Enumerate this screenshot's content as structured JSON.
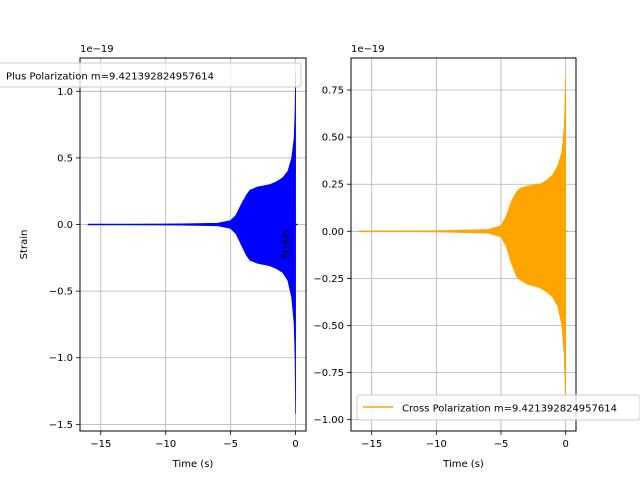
{
  "chart_data": [
    {
      "type": "line",
      "title": "",
      "xlabel": "Time (s)",
      "ylabel": "Strain",
      "offset_label": "1e−19",
      "xlim": [
        -16.6,
        0.8
      ],
      "ylim": [
        -1.55,
        1.25
      ],
      "xticks": [
        -15,
        -10,
        -5,
        0
      ],
      "xtick_labels": [
        "−15",
        "−10",
        "−5",
        "0"
      ],
      "yticks": [
        1.0,
        0.5,
        0.0,
        -0.5,
        -1.0,
        -1.5
      ],
      "ytick_labels": [
        "1.0",
        "0.5",
        "0.0",
        "−0.5",
        "−1.0",
        "−1.5"
      ],
      "grid": true,
      "legend_position": "top-center",
      "series": [
        {
          "name": "Plus Polarization m=9.421392824957614",
          "color": "#0000ff",
          "x": [
            -16,
            -10,
            -6,
            -5,
            -4.6,
            -4.2,
            -3.8,
            -3.5,
            -3.2,
            -3.0,
            -2.5,
            -2,
            -1.5,
            -1.0,
            -0.6,
            -0.3,
            -0.12,
            -0.05,
            0
          ],
          "y_upper": [
            0.0,
            0.003,
            0.01,
            0.03,
            0.07,
            0.15,
            0.22,
            0.26,
            0.27,
            0.28,
            0.29,
            0.3,
            0.32,
            0.35,
            0.4,
            0.5,
            0.65,
            0.85,
            1.15
          ],
          "y_lower": [
            0.0,
            -0.003,
            -0.01,
            -0.03,
            -0.07,
            -0.15,
            -0.23,
            -0.27,
            -0.28,
            -0.29,
            -0.3,
            -0.31,
            -0.33,
            -0.36,
            -0.42,
            -0.55,
            -0.75,
            -1.0,
            -1.42
          ]
        }
      ]
    },
    {
      "type": "line",
      "title": "",
      "xlabel": "Time (s)",
      "ylabel": "Strain",
      "offset_label": "1e−19",
      "xlim": [
        -16.6,
        0.8
      ],
      "ylim": [
        -1.06,
        0.92
      ],
      "xticks": [
        -15,
        -10,
        -5,
        0
      ],
      "xtick_labels": [
        "−15",
        "−10",
        "−5",
        "0"
      ],
      "yticks": [
        0.75,
        0.5,
        0.25,
        0.0,
        -0.25,
        -0.5,
        -0.75,
        -1.0
      ],
      "ytick_labels": [
        "0.75",
        "0.50",
        "0.25",
        "0.00",
        "−0.25",
        "−0.50",
        "−0.75",
        "−1.00"
      ],
      "grid": true,
      "legend_position": "bottom-left",
      "series": [
        {
          "name": "Cross Polarization m=9.421392824957614",
          "color": "#ffa500",
          "x": [
            -16,
            -10,
            -6,
            -5,
            -4.6,
            -4.2,
            -3.8,
            -3.5,
            -3.2,
            -3.0,
            -2.5,
            -2,
            -1.5,
            -1.0,
            -0.6,
            -0.3,
            -0.12,
            -0.05,
            0
          ],
          "y_upper": [
            0.0,
            0.003,
            0.01,
            0.03,
            0.08,
            0.16,
            0.21,
            0.23,
            0.235,
            0.24,
            0.245,
            0.25,
            0.27,
            0.3,
            0.35,
            0.42,
            0.55,
            0.7,
            0.83
          ],
          "y_lower": [
            0.0,
            -0.003,
            -0.01,
            -0.03,
            -0.08,
            -0.17,
            -0.24,
            -0.26,
            -0.27,
            -0.28,
            -0.29,
            -0.3,
            -0.32,
            -0.35,
            -0.4,
            -0.5,
            -0.65,
            -0.8,
            -0.95
          ]
        }
      ]
    }
  ]
}
